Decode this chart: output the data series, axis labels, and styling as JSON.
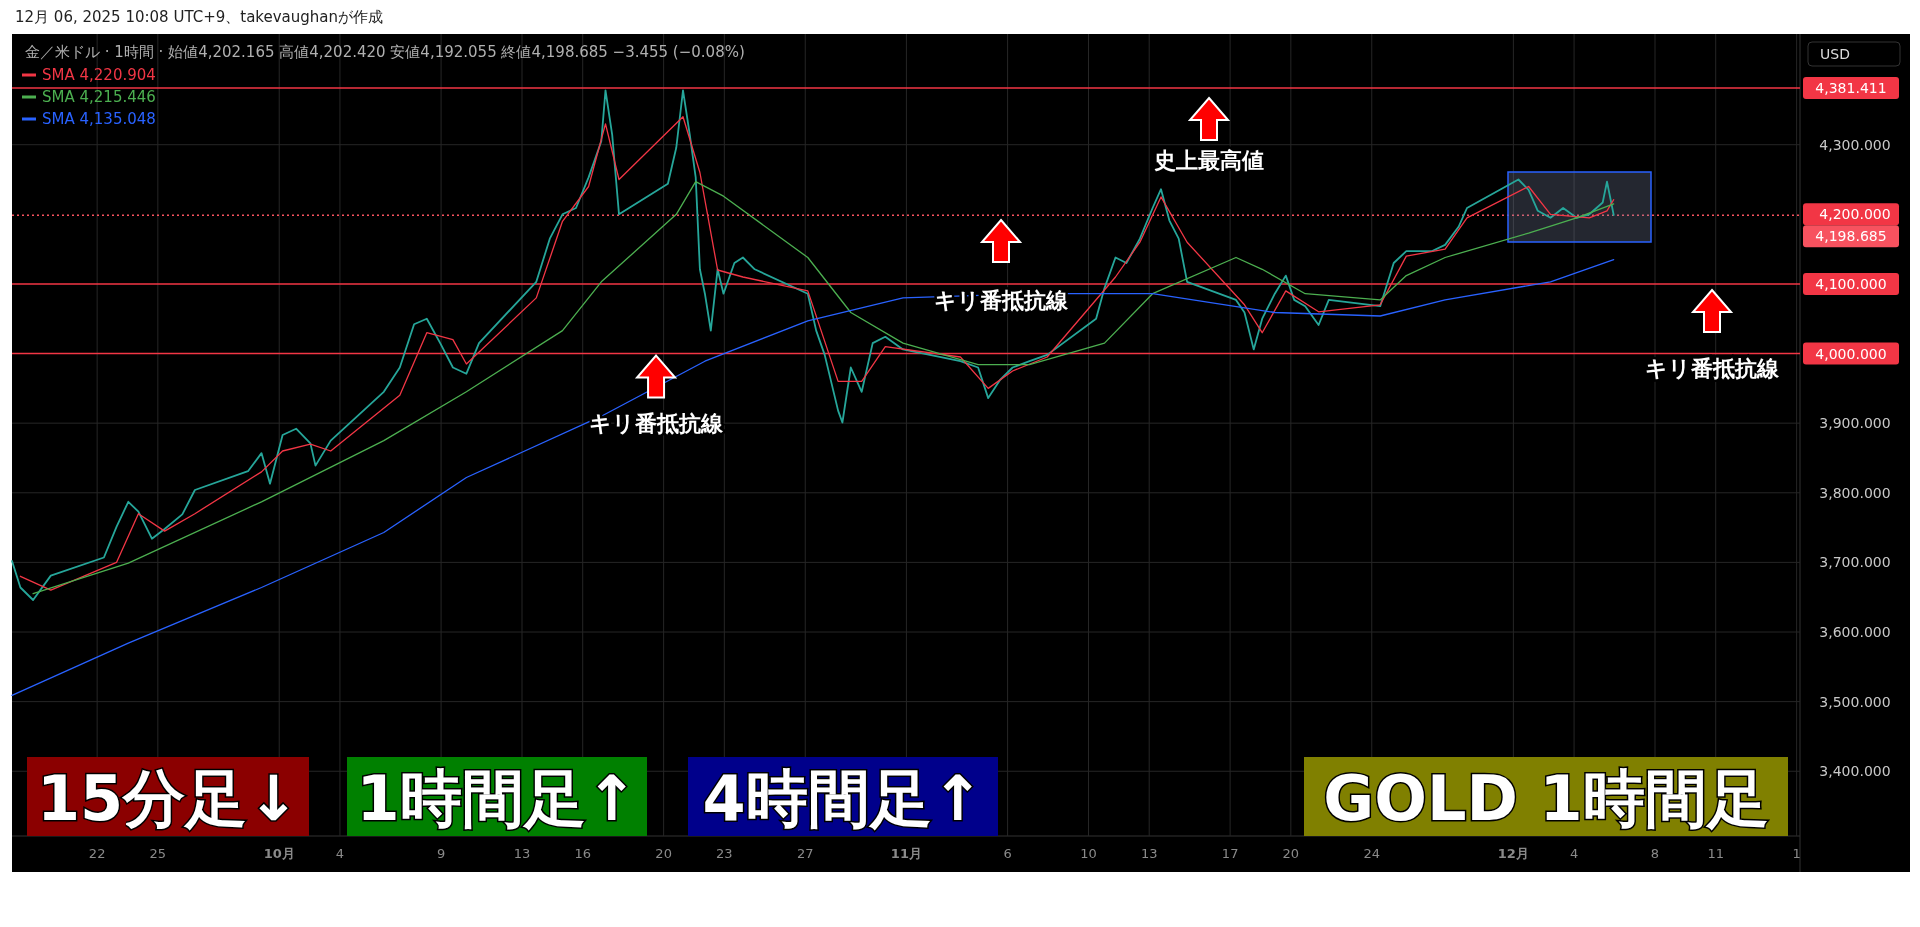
{
  "chart_data": {
    "type": "line",
    "title": "12月 06, 2025 10:08 UTC+9、takevaughanが作成",
    "subtitle": "金／米ドル · 1時間 · 始値4,202.165 高値4,202.420 安値4,192.055 終値4,198.685 −3.455 (−0.08%)",
    "ylabel": "USD",
    "xlim": [
      "2025-09-17T19:00",
      "2025-12-15T04:00"
    ],
    "ylim": [
      3307,
      4459
    ],
    "xticks": [
      {
        "value": "2025-09-22",
        "label": "22"
      },
      {
        "value": "2025-09-25",
        "label": "25"
      },
      {
        "value": "2025-10-01",
        "label": "10月"
      },
      {
        "value": "2025-10-04",
        "label": "4"
      },
      {
        "value": "2025-10-09",
        "label": "9"
      },
      {
        "value": "2025-10-13",
        "label": "13"
      },
      {
        "value": "2025-10-16",
        "label": "16"
      },
      {
        "value": "2025-10-20",
        "label": "20"
      },
      {
        "value": "2025-10-23",
        "label": "23"
      },
      {
        "value": "2025-10-27",
        "label": "27"
      },
      {
        "value": "2025-11-01",
        "label": "11月"
      },
      {
        "value": "2025-11-06",
        "label": "6"
      },
      {
        "value": "2025-11-10",
        "label": "10"
      },
      {
        "value": "2025-11-13",
        "label": "13"
      },
      {
        "value": "2025-11-17",
        "label": "17"
      },
      {
        "value": "2025-11-20",
        "label": "20"
      },
      {
        "value": "2025-11-24",
        "label": "24"
      },
      {
        "value": "2025-12-01",
        "label": "12月"
      },
      {
        "value": "2025-12-04",
        "label": "4"
      },
      {
        "value": "2025-12-08",
        "label": "8"
      },
      {
        "value": "2025-12-11",
        "label": "11"
      },
      {
        "value": "2025-12-15",
        "label": "1"
      }
    ],
    "yticks": [
      {
        "value": 3400,
        "label": "3,400.000"
      },
      {
        "value": 3500,
        "label": "3,500.000"
      },
      {
        "value": 3600,
        "label": "3,600.000"
      },
      {
        "value": 3700,
        "label": "3,700.000"
      },
      {
        "value": 3800,
        "label": "3,800.000"
      },
      {
        "value": 3900,
        "label": "3,900.000"
      },
      {
        "value": 4200,
        "label": "4,200.000"
      },
      {
        "value": 4300,
        "label": "4,300.000"
      }
    ],
    "grid": true,
    "legend": "top left",
    "series": [
      {
        "color": "#26a69a",
        "x": [
          "2025-09-17T19:00",
          "2025-09-18T05:00",
          "2025-09-18T20:00",
          "2025-09-19T17:00",
          "2025-09-22T08:00",
          "2025-09-22T23:00",
          "2025-09-23T13:00",
          "2025-09-24T01:00",
          "2025-09-24T17:00",
          "2025-09-25T08:00",
          "2025-09-26T05:00",
          "2025-09-26T20:00",
          "2025-09-29T11:00",
          "2025-09-30T03:00",
          "2025-09-30T13:00",
          "2025-10-01T04:00",
          "2025-10-01T20:00",
          "2025-10-02T13:00",
          "2025-10-02T19:00",
          "2025-10-03T13:00",
          "2025-10-06T04:00",
          "2025-10-06T23:00",
          "2025-10-07T16:00",
          "2025-10-08T07:00",
          "2025-10-08T23:00",
          "2025-10-09T14:00",
          "2025-10-10T06:00",
          "2025-10-10T21:00",
          "2025-10-13T17:00",
          "2025-10-14T09:00",
          "2025-10-15T00:00",
          "2025-10-15T16:00",
          "2025-10-16T07:00",
          "2025-10-16T22:00",
          "2025-10-17T03:00",
          "2025-10-17T11:00",
          "2025-10-17T19:00",
          "2025-10-20T05:00",
          "2025-10-20T15:00",
          "2025-10-20T23:00",
          "2025-10-21T07:00",
          "2025-10-21T14:00",
          "2025-10-21T19:00",
          "2025-10-22T01:00",
          "2025-10-22T08:00",
          "2025-10-22T16:00",
          "2025-10-22T23:00",
          "2025-10-23T12:00",
          "2025-10-23T22:00",
          "2025-10-24T12:00",
          "2025-10-27T03:00",
          "2025-10-27T13:00",
          "2025-10-27T23:00",
          "2025-10-28T15:00",
          "2025-10-28T20:00",
          "2025-10-29T06:00",
          "2025-10-29T19:00",
          "2025-10-30T08:00",
          "2025-10-30T23:00",
          "2025-10-31T20:00",
          "2025-11-03T16:00",
          "2025-11-04T13:00",
          "2025-11-05T01:00",
          "2025-11-05T15:00",
          "2025-11-06T06:00",
          "2025-11-07T02:00",
          "2025-11-07T23:00",
          "2025-11-10T09:00",
          "2025-11-10T19:00",
          "2025-11-11T08:00",
          "2025-11-11T21:00",
          "2025-11-12T13:00",
          "2025-11-13T04:00",
          "2025-11-13T14:00",
          "2025-11-14T00:00",
          "2025-11-14T11:00",
          "2025-11-14T21:00",
          "2025-11-17T07:00",
          "2025-11-17T17:00",
          "2025-11-18T04:00",
          "2025-11-18T14:00",
          "2025-11-19T05:00",
          "2025-11-19T18:00",
          "2025-11-20T04:00",
          "2025-11-20T17:00",
          "2025-11-21T09:00",
          "2025-11-21T21:00",
          "2025-11-24T10:00",
          "2025-11-25T02:00",
          "2025-11-25T17:00",
          "2025-11-26T08:00",
          "2025-11-26T23:00",
          "2025-11-27T15:00",
          "2025-11-28T07:00",
          "2025-11-28T17:00",
          "2025-12-01T06:00",
          "2025-12-01T18:00",
          "2025-12-02T05:00",
          "2025-12-02T20:00",
          "2025-12-03T11:00",
          "2025-12-04T03:00",
          "2025-12-04T18:00",
          "2025-12-05T10:00",
          "2025-12-05T15:00",
          "2025-12-05T23:00"
        ],
        "values": [
          3702,
          3664,
          3646,
          3681,
          3707,
          3751,
          3787,
          3773,
          3734,
          3748,
          3769,
          3804,
          3831,
          3857,
          3813,
          3883,
          3892,
          3871,
          3839,
          3875,
          3945,
          3980,
          4042,
          4050,
          4015,
          3980,
          3971,
          4015,
          4103,
          4165,
          4200,
          4209,
          4253,
          4305,
          4378,
          4314,
          4200,
          4244,
          4296,
          4378,
          4314,
          4253,
          4121,
          4086,
          4033,
          4121,
          4086,
          4130,
          4138,
          4121,
          4086,
          4033,
          3998,
          3918,
          3901,
          3980,
          3945,
          4015,
          4024,
          4006,
          3989,
          3980,
          3936,
          3962,
          3980,
          3989,
          3998,
          4050,
          4094,
          4138,
          4130,
          4165,
          4209,
          4236,
          4191,
          4165,
          4103,
          4077,
          4059,
          4006,
          4050,
          4086,
          4112,
          4077,
          4068,
          4041,
          4077,
          4068,
          4130,
          4147,
          4147,
          4147,
          4156,
          4182,
          4209,
          4250,
          4235,
          4205,
          4195,
          4209,
          4195,
          4200,
          4217,
          4247,
          4199
        ]
      },
      {
        "name": "SMA 4,220.904",
        "color": "#f23645",
        "x": [
          "2025-09-18T05:00",
          "2025-09-19T17:00",
          "2025-09-22T23:00",
          "2025-09-24T01:00",
          "2025-09-25T08:00",
          "2025-09-26T20:00",
          "2025-09-30T03:00",
          "2025-10-01T04:00",
          "2025-10-02T13:00",
          "2025-10-03T13:00",
          "2025-10-06T23:00",
          "2025-10-08T07:00",
          "2025-10-09T14:00",
          "2025-10-10T06:00",
          "2025-10-13T17:00",
          "2025-10-15T00:00",
          "2025-10-16T07:00",
          "2025-10-17T03:00",
          "2025-10-17T19:00",
          "2025-10-20T23:00",
          "2025-10-21T19:00",
          "2025-10-22T16:00",
          "2025-10-23T22:00",
          "2025-10-27T03:00",
          "2025-10-28T15:00",
          "2025-10-29T19:00",
          "2025-10-30T23:00",
          "2025-11-03T16:00",
          "2025-11-05T01:00",
          "2025-11-06T06:00",
          "2025-11-07T23:00",
          "2025-11-11T08:00",
          "2025-11-12T13:00",
          "2025-11-13T14:00",
          "2025-11-14T21:00",
          "2025-11-17T17:00",
          "2025-11-18T14:00",
          "2025-11-19T18:00",
          "2025-11-21T09:00",
          "2025-11-24T10:00",
          "2025-11-25T17:00",
          "2025-11-27T15:00",
          "2025-11-28T17:00",
          "2025-12-01T18:00",
          "2025-12-02T20:00",
          "2025-12-04T18:00",
          "2025-12-05T15:00",
          "2025-12-05T23:00"
        ],
        "values": [
          3680,
          3660,
          3700,
          3770,
          3745,
          3770,
          3830,
          3860,
          3870,
          3860,
          3940,
          4030,
          4020,
          3985,
          4080,
          4190,
          4240,
          4330,
          4250,
          4340,
          4260,
          4120,
          4110,
          4090,
          3960,
          3960,
          4010,
          3995,
          3950,
          3975,
          3995,
          4110,
          4160,
          4225,
          4160,
          4070,
          4030,
          4090,
          4060,
          4070,
          4140,
          4150,
          4195,
          4240,
          4200,
          4195,
          4205,
          4221
        ]
      },
      {
        "name": "SMA 4,215.446",
        "color": "#4caf50",
        "x": [
          "2025-09-18T20:00",
          "2025-09-23T13:00",
          "2025-09-30T03:00",
          "2025-10-06T04:00",
          "2025-10-10T06:00",
          "2025-10-15T00:00",
          "2025-10-16T22:00",
          "2025-10-20T15:00",
          "2025-10-21T14:00",
          "2025-10-22T23:00",
          "2025-10-27T03:00",
          "2025-10-29T06:00",
          "2025-10-31T20:00",
          "2025-11-04T13:00",
          "2025-11-07T02:00",
          "2025-11-10T19:00",
          "2025-11-13T04:00",
          "2025-11-17T07:00",
          "2025-11-18T14:00",
          "2025-11-20T17:00",
          "2025-11-24T10:00",
          "2025-11-25T17:00",
          "2025-11-27T15:00",
          "2025-12-01T18:00",
          "2025-12-04T03:00",
          "2025-12-05T23:00"
        ],
        "values": [
          3655,
          3699,
          3787,
          3875,
          3945,
          4033,
          4103,
          4200,
          4247,
          4226,
          4138,
          4059,
          4015,
          3984,
          3984,
          4015,
          4086,
          4138,
          4121,
          4086,
          4077,
          4112,
          4138,
          4173,
          4195,
          4215
        ]
      },
      {
        "name": "SMA 4,135.048",
        "color": "#2962ff",
        "x": [
          "2025-09-17T19:00",
          "2025-09-23T13:00",
          "2025-09-30T03:00",
          "2025-10-06T04:00",
          "2025-10-10T06:00",
          "2025-10-16T22:00",
          "2025-10-22T01:00",
          "2025-10-27T03:00",
          "2025-10-31T20:00",
          "2025-11-07T02:00",
          "2025-11-13T04:00",
          "2025-11-19T05:00",
          "2025-11-24T10:00",
          "2025-11-27T15:00",
          "2025-12-02T20:00",
          "2025-12-05T23:00"
        ],
        "values": [
          3509,
          3584,
          3664,
          3743,
          3822,
          3910,
          3989,
          4047,
          4080,
          4086,
          4086,
          4059,
          4054,
          4077,
          4103,
          4135
        ]
      }
    ],
    "ref_lines": [
      {
        "axis": "y",
        "value": 4381.411,
        "label": "4,381.411",
        "color": "#f23645",
        "line_style": "solid"
      },
      {
        "axis": "y",
        "value": 4198.685,
        "label": "4,198.685",
        "color": "#f7525f",
        "line_style": "dotted"
      },
      {
        "axis": "y",
        "value": 4100,
        "label": "4,100.000",
        "color": "#f23645",
        "line_style": "solid"
      },
      {
        "axis": "y",
        "value": 4000,
        "label": "4,000.000",
        "color": "#f23645",
        "line_style": "solid"
      }
    ],
    "annotations": [
      "史上最高値",
      "キリ番抵抗線",
      {
        "text": "キリ番抵抗線",
        "x": "2025-10-19T15:00",
        "y": 4000
      },
      "キリ番抵抗線",
      "15分足↓",
      "1時間足↑",
      "4時間足↑",
      "GOLD 1時間足"
    ]
  }
}
